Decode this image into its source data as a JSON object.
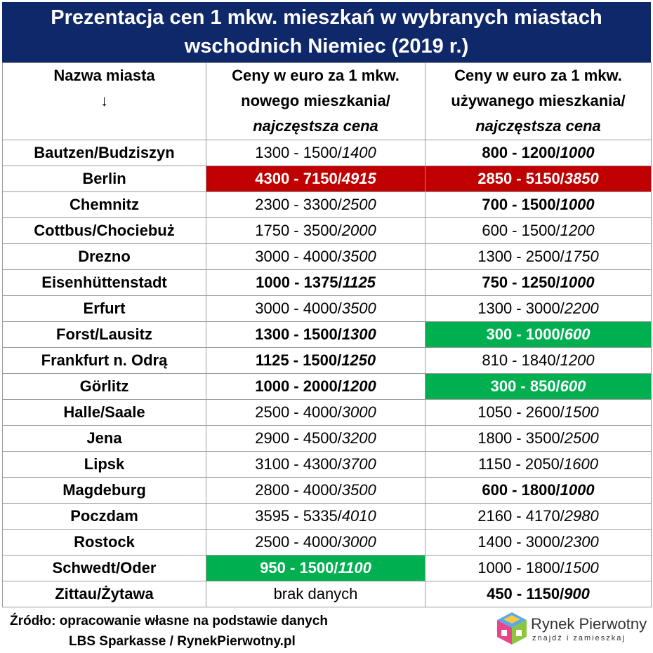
{
  "title": {
    "line1": "Prezentacja cen 1 mkw. mieszkań w wybranych miastach",
    "line2": "wschodnich Niemiec (2019 r.)"
  },
  "header": {
    "col1": [
      "Nazwa miasta",
      "↓"
    ],
    "col2": [
      "Ceny w euro za 1 mkw.",
      "nowego mieszkania/",
      "najczęstsza cena"
    ],
    "col3": [
      "Ceny w euro za 1 mkw.",
      "używanego mieszkania/",
      "najczęstsza cena"
    ]
  },
  "rows": [
    {
      "city": "Bautzen/Budziszyn",
      "new_range": "1300 - 1500/",
      "new_most": "1400",
      "new_style": "",
      "used_range": "800 - 1200/",
      "used_most": "1000",
      "used_style": "b"
    },
    {
      "city": "Berlin",
      "new_range": "4300 - 7150/",
      "new_most": "4915",
      "new_style": "red",
      "used_range": "2850 - 5150/",
      "used_most": "3850",
      "used_style": "red"
    },
    {
      "city": "Chemnitz",
      "new_range": "2300 - 3300/",
      "new_most": "2500",
      "new_style": "",
      "used_range": "700 - 1500/",
      "used_most": "1000",
      "used_style": "b"
    },
    {
      "city": "Cottbus/Chociebuż",
      "new_range": "1750 - 3500/",
      "new_most": "2000",
      "new_style": "",
      "used_range": "600 - 1500/",
      "used_most": "1200",
      "used_style": ""
    },
    {
      "city": "Drezno",
      "new_range": "3000 - 4000/",
      "new_most": "3500",
      "new_style": "",
      "used_range": "1300 - 2500/",
      "used_most": "1750",
      "used_style": ""
    },
    {
      "city": "Eisenhüttenstadt",
      "new_range": "1000 - 1375/",
      "new_most": "1125",
      "new_style": "b",
      "used_range": "750 - 1250/",
      "used_most": "1000",
      "used_style": "b"
    },
    {
      "city": "Erfurt",
      "new_range": "3000 - 4000/",
      "new_most": "3500",
      "new_style": "",
      "used_range": "1300 - 3000/",
      "used_most": "2200",
      "used_style": ""
    },
    {
      "city": "Forst/Lausitz",
      "new_range": "1300 - 1500/",
      "new_most": "1300",
      "new_style": "b",
      "used_range": "300 - 1000/",
      "used_most": "600",
      "used_style": "green"
    },
    {
      "city": "Frankfurt n. Odrą",
      "new_range": "1125 - 1500/",
      "new_most": "1250",
      "new_style": "b",
      "used_range": "810 - 1840/",
      "used_most": "1200",
      "used_style": ""
    },
    {
      "city": "Görlitz",
      "new_range": "1000 - 2000/",
      "new_most": "1200",
      "new_style": "b",
      "used_range": "300 - 850/",
      "used_most": "600",
      "used_style": "green"
    },
    {
      "city": "Halle/Saale",
      "new_range": "2500 - 4000/",
      "new_most": "3000",
      "new_style": "",
      "used_range": "1050 - 2600/",
      "used_most": "1500",
      "used_style": ""
    },
    {
      "city": "Jena",
      "new_range": "2900 - 4500/",
      "new_most": "3200",
      "new_style": "",
      "used_range": "1800 - 3500/",
      "used_most": "2500",
      "used_style": ""
    },
    {
      "city": "Lipsk",
      "new_range": "3100 - 4300/",
      "new_most": "3700",
      "new_style": "",
      "used_range": "1150 - 2050/",
      "used_most": "1600",
      "used_style": ""
    },
    {
      "city": "Magdeburg",
      "new_range": "2800 - 4000/",
      "new_most": "3500",
      "new_style": "",
      "used_range": "600 - 1800/",
      "used_most": "1000",
      "used_style": "b"
    },
    {
      "city": "Poczdam",
      "new_range": "3595 - 5335/",
      "new_most": "4010",
      "new_style": "",
      "used_range": "2160 - 4170/",
      "used_most": "2980",
      "used_style": ""
    },
    {
      "city": "Rostock",
      "new_range": "2500 - 4000/",
      "new_most": "3000",
      "new_style": "",
      "used_range": "1400 - 3000/",
      "used_most": "2300",
      "used_style": ""
    },
    {
      "city": "Schwedt/Oder",
      "new_range": "950 - 1500/",
      "new_most": "1100",
      "new_style": "green",
      "used_range": "1000 - 1800/",
      "used_most": "1500",
      "used_style": ""
    },
    {
      "city": "Zittau/Żytawa",
      "new_range": "brak danych",
      "new_most": "",
      "new_style": "",
      "used_range": "450 - 1150/",
      "used_most": "900",
      "used_style": "b"
    }
  ],
  "colors": {
    "title_bg": "#0f2869",
    "highlight_red": "#c00000",
    "highlight_green": "#00b050"
  },
  "footer": {
    "source_line1": "Źródło: opracowanie własne na podstawie danych",
    "source_line2": "LBS Sparkasse / RynekPierwotny.pl"
  },
  "logo": {
    "name": "Rynek Pierwotny",
    "tagline": "znajdź i zamieszkaj",
    "icon": "house-cube-logo-icon"
  }
}
